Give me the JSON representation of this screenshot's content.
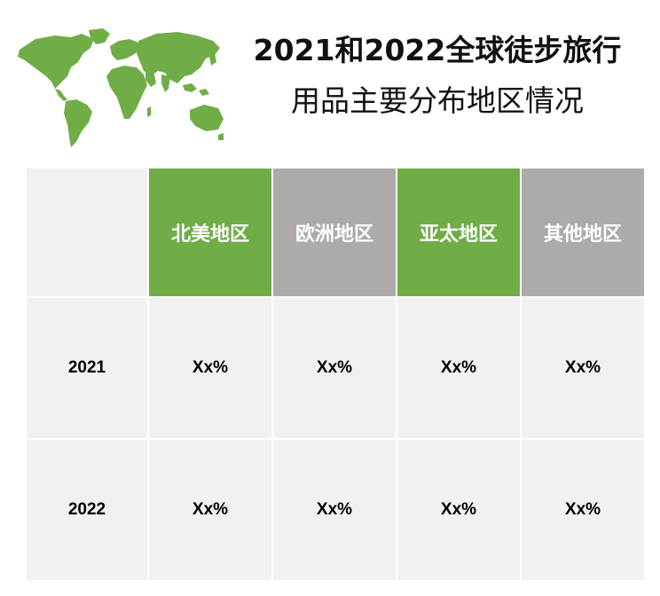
{
  "title": {
    "line1": "2021和2022全球徒步旅行",
    "line2": "用品主要分布地区情况"
  },
  "table": {
    "headers": [
      "北美地区",
      "欧洲地区",
      "亚太地区",
      "其他地区"
    ],
    "rows": [
      {
        "year": "2021",
        "values": [
          "Xx%",
          "Xx%",
          "Xx%",
          "Xx%"
        ]
      },
      {
        "year": "2022",
        "values": [
          "Xx%",
          "Xx%",
          "Xx%",
          "Xx%"
        ]
      }
    ]
  },
  "colors": {
    "green": "#70ad47",
    "gray": "#aeaaaa",
    "cell": "#f1f1f1"
  },
  "icons": [
    "world-map-icon"
  ]
}
